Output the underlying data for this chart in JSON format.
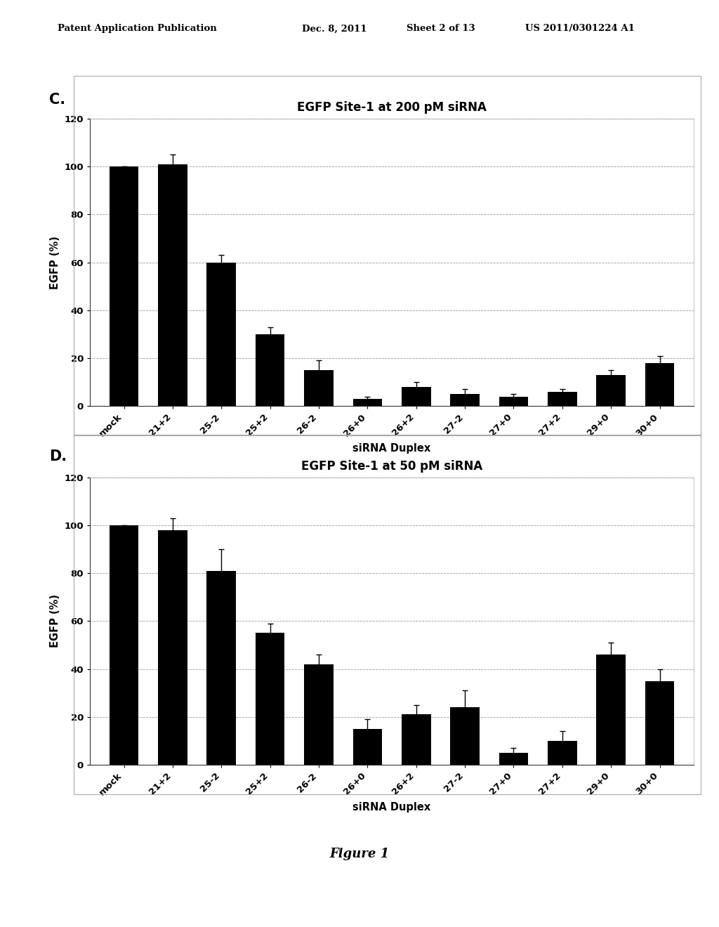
{
  "chart_c": {
    "title": "EGFP Site-1 at 200 pM siRNA",
    "categories": [
      "mock",
      "21+2",
      "25-2",
      "25+2",
      "26-2",
      "26+0",
      "26+2",
      "27-2",
      "27+0",
      "27+2",
      "29+0",
      "30+0"
    ],
    "values": [
      100,
      101,
      60,
      30,
      15,
      3,
      8,
      5,
      4,
      6,
      13,
      18
    ],
    "errors": [
      0,
      4,
      3,
      3,
      4,
      1,
      2,
      2,
      1,
      1,
      2,
      3
    ],
    "ylabel": "EGFP (%)",
    "xlabel": "siRNA Duplex",
    "ylim": [
      0,
      120
    ],
    "yticks": [
      0,
      20,
      40,
      60,
      80,
      100,
      120
    ],
    "bar_color": "#000000",
    "grid_color": "#999999"
  },
  "chart_d": {
    "title": "EGFP Site-1 at 50 pM siRNA",
    "categories": [
      "mock",
      "21+2",
      "25-2",
      "25+2",
      "26-2",
      "26+0",
      "26+2",
      "27-2",
      "27+0",
      "27+2",
      "29+0",
      "30+0"
    ],
    "values": [
      100,
      98,
      81,
      55,
      42,
      15,
      21,
      24,
      5,
      10,
      46,
      35
    ],
    "errors": [
      0,
      5,
      9,
      4,
      4,
      4,
      4,
      7,
      2,
      4,
      5,
      5
    ],
    "ylabel": "EGFP (%)",
    "xlabel": "siRNA Duplex",
    "ylim": [
      0,
      120
    ],
    "yticks": [
      0,
      20,
      40,
      60,
      80,
      100,
      120
    ],
    "bar_color": "#000000",
    "grid_color": "#999999"
  },
  "figure_label": "Figure 1",
  "header_left": "Patent Application Publication",
  "header_mid": "Dec. 8, 2011",
  "header_sheet": "Sheet 2 of 13",
  "header_right": "US 2011/0301224 A1",
  "background_color": "#ffffff"
}
